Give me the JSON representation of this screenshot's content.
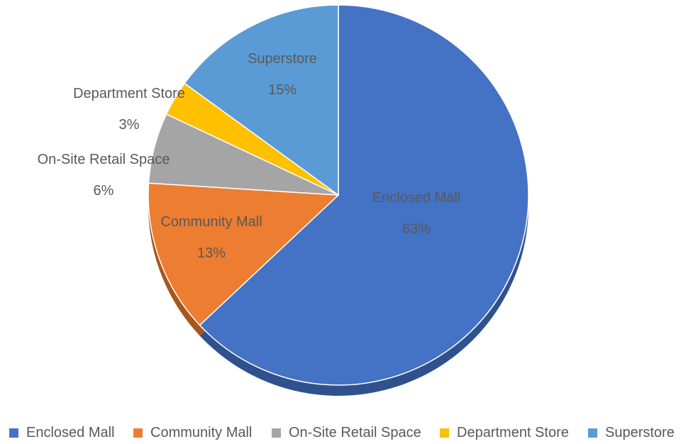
{
  "chart_data": {
    "type": "pie",
    "title": "",
    "slices": [
      {
        "name": "Enclosed Mall",
        "value": 63,
        "label": "63%",
        "color": "#4472C4",
        "shade": "#2F528F"
      },
      {
        "name": "Community Mall",
        "value": 13,
        "label": "13%",
        "color": "#ED7D31",
        "shade": "#A9561E"
      },
      {
        "name": "On-Site Retail Space",
        "value": 6,
        "label": "6%",
        "color": "#A5A5A5",
        "shade": "#7B7B7B"
      },
      {
        "name": "Department Store",
        "value": 3,
        "label": "3%",
        "color": "#FFC000",
        "shade": "#B38600"
      },
      {
        "name": "Superstore",
        "value": 15,
        "label": "15%",
        "color": "#5B9BD5",
        "shade": "#3F73A3"
      }
    ],
    "start_angle": "12 o'clock",
    "direction": "clockwise",
    "legend_position": "bottom"
  }
}
